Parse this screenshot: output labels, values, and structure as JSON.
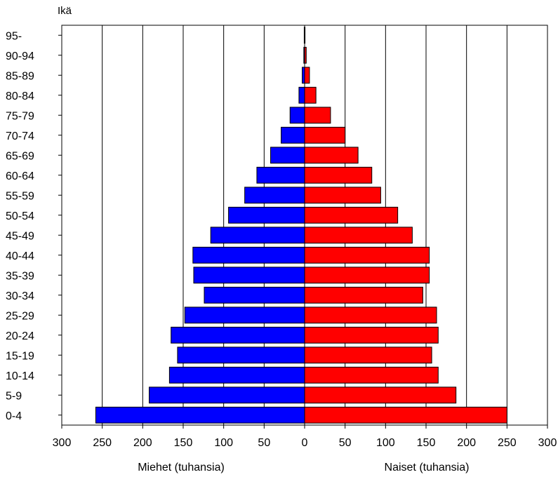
{
  "chart_data": {
    "type": "bar",
    "orientation": "horizontal-population-pyramid",
    "ylabel": "Ikä",
    "categories": [
      "95-",
      "90-94",
      "85-89",
      "80-84",
      "75-79",
      "70-74",
      "65-69",
      "60-64",
      "55-59",
      "50-54",
      "45-49",
      "40-44",
      "35-39",
      "30-34",
      "25-29",
      "20-24",
      "15-19",
      "10-14",
      "5-9",
      "0-4"
    ],
    "series": [
      {
        "name": "Miehet (tuhansia)",
        "side": "left",
        "color": "#0000ff",
        "values": [
          0.5,
          1,
          3,
          7,
          18,
          29,
          42,
          59,
          74,
          94,
          116,
          138,
          137,
          124,
          148,
          165,
          157,
          167,
          192,
          258
        ]
      },
      {
        "name": "Naiset (tuhansia)",
        "side": "right",
        "color": "#ff0000",
        "values": [
          0.5,
          2,
          6,
          14,
          32,
          50,
          66,
          83,
          94,
          115,
          133,
          154,
          154,
          146,
          163,
          165,
          157,
          165,
          187,
          250
        ]
      }
    ],
    "xlabel_left": "Miehet (tuhansia)",
    "xlabel_right": "Naiset (tuhansia)",
    "xticks_left": [
      "300",
      "250",
      "200",
      "150",
      "100",
      "50",
      "0"
    ],
    "xticks_right": [
      "50",
      "100",
      "150",
      "200",
      "250",
      "300"
    ],
    "xlim": [
      -300,
      300
    ],
    "grid": "vertical"
  }
}
